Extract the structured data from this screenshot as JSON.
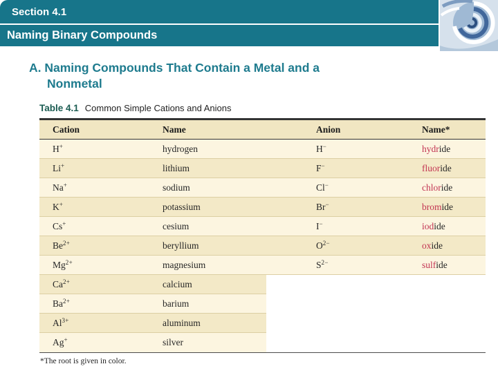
{
  "slide": {
    "section": "Section 4.1",
    "title": "Naming Binary Compounds",
    "heading_line1": "A. Naming Compounds That Contain a Metal and a",
    "heading_line2": "Nonmetal"
  },
  "table": {
    "caption_label": "Table 4.1",
    "caption_text": "Common Simple Cations and Anions",
    "headers": [
      "Cation",
      "Name",
      "Anion",
      "Name*"
    ],
    "rows": [
      {
        "cation": "H",
        "cation_charge": "+",
        "cation_name": "hydrogen",
        "anion": "H",
        "anion_charge": "−",
        "anion_root": "hydr",
        "anion_suffix": "ide"
      },
      {
        "cation": "Li",
        "cation_charge": "+",
        "cation_name": "lithium",
        "anion": "F",
        "anion_charge": "−",
        "anion_root": "fluor",
        "anion_suffix": "ide"
      },
      {
        "cation": "Na",
        "cation_charge": "+",
        "cation_name": "sodium",
        "anion": "Cl",
        "anion_charge": "−",
        "anion_root": "chlor",
        "anion_suffix": "ide"
      },
      {
        "cation": "K",
        "cation_charge": "+",
        "cation_name": "potassium",
        "anion": "Br",
        "anion_charge": "−",
        "anion_root": "brom",
        "anion_suffix": "ide"
      },
      {
        "cation": "Cs",
        "cation_charge": "+",
        "cation_name": "cesium",
        "anion": "I",
        "anion_charge": "−",
        "anion_root": "iod",
        "anion_suffix": "ide"
      },
      {
        "cation": "Be",
        "cation_charge": "2+",
        "cation_name": "beryllium",
        "anion": "O",
        "anion_charge": "2−",
        "anion_root": "ox",
        "anion_suffix": "ide"
      },
      {
        "cation": "Mg",
        "cation_charge": "2+",
        "cation_name": "magnesium",
        "anion": "S",
        "anion_charge": "2−",
        "anion_root": "sulf",
        "anion_suffix": "ide"
      },
      {
        "cation": "Ca",
        "cation_charge": "2+",
        "cation_name": "calcium"
      },
      {
        "cation": "Ba",
        "cation_charge": "2+",
        "cation_name": "barium"
      },
      {
        "cation": "Al",
        "cation_charge": "3+",
        "cation_name": "aluminum"
      },
      {
        "cation": "Ag",
        "cation_charge": "+",
        "cation_name": "silver"
      }
    ],
    "footnote": "*The root is given in color."
  },
  "colors": {
    "teal_bar": "#17758a",
    "heading_teal": "#1e7b8e",
    "caption_label": "#1b5c52",
    "cream_light": "#fcf5e0",
    "cream_dark": "#f3e9c7",
    "cream_header": "#f1e6c2",
    "row_line": "#dccfa3",
    "anion_red": "#c23352"
  }
}
